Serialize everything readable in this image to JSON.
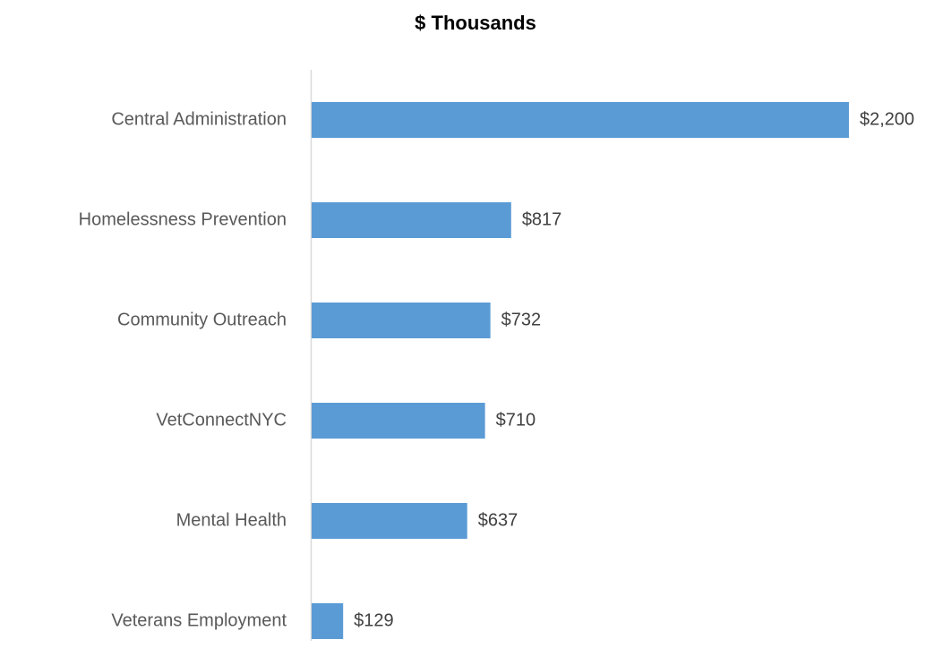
{
  "chart_data": {
    "type": "bar",
    "orientation": "horizontal",
    "title": "$ Thousands",
    "categories": [
      "Central Administration",
      "Homelessness Prevention",
      "Community Outreach",
      "VetConnectNYC",
      "Mental Health",
      "Veterans Employment"
    ],
    "values": [
      2200,
      817,
      732,
      710,
      637,
      129
    ],
    "value_labels": [
      "$2,200",
      "$817",
      "$732",
      "$710",
      "$637",
      "$129"
    ],
    "color": "#5b9bd5"
  }
}
